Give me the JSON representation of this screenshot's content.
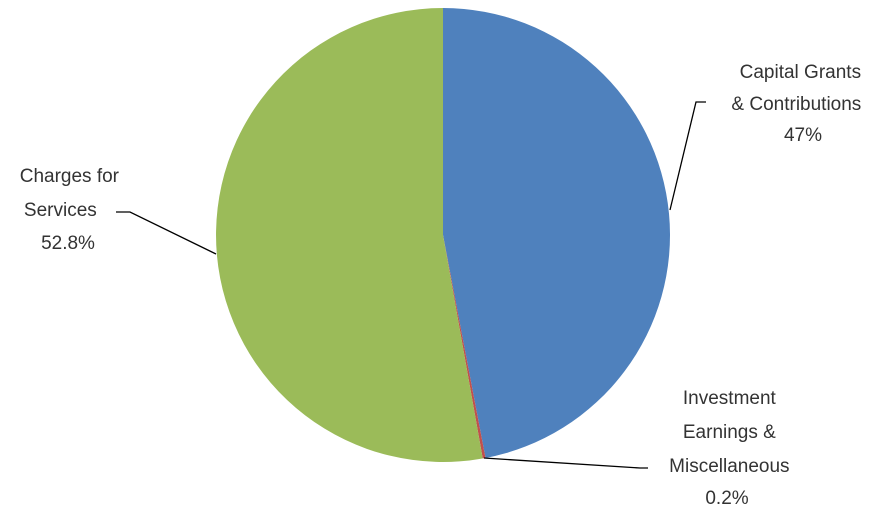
{
  "chart_data": {
    "type": "pie",
    "title": "",
    "start_angle_deg": 0,
    "direction": "clockwise",
    "slices": [
      {
        "label_lines": [
          "Capital Grants",
          "& Contributions"
        ],
        "pct_label": "47%",
        "value": 47.0,
        "color": "#4F81BD"
      },
      {
        "label_lines": [
          "Investment",
          "Earnings &",
          "Miscellaneous"
        ],
        "pct_label": "0.2%",
        "value": 0.2,
        "color": "#C0504D"
      },
      {
        "label_lines": [
          "Charges for",
          "Services"
        ],
        "pct_label": "52.8%",
        "value": 52.8,
        "color": "#9BBB59"
      }
    ],
    "legend": "none"
  }
}
